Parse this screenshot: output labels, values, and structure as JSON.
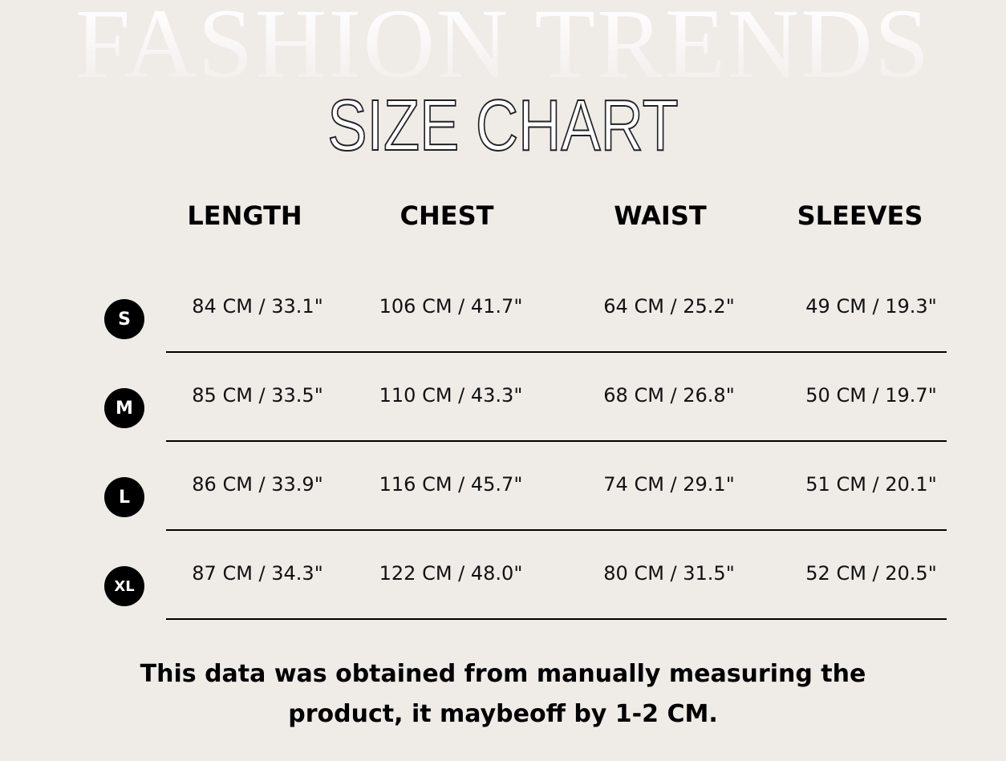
{
  "background_title": "FASHION TRENDS",
  "title": "SIZE CHART",
  "columns": [
    "LENGTH",
    "CHEST",
    "WAIST",
    "SLEEVES"
  ],
  "rows": [
    {
      "size": "S",
      "values": [
        "84  CM /  33.1\"",
        "106 CM /  41.7\"",
        "64  CM / 25.2\"",
        "49 CM /  19.3\""
      ]
    },
    {
      "size": "M",
      "values": [
        "85  CM / 33.5\"",
        "110 CM / 43.3\"",
        "68  CM / 26.8\"",
        "50 CM /  19.7\""
      ]
    },
    {
      "size": "L",
      "values": [
        "86  CM / 33.9\"",
        "116 CM / 45.7\"",
        "74  CM /  29.1\"",
        "51 CM /  20.1\""
      ]
    },
    {
      "size": "XL",
      "values": [
        "87  CM / 34.3\"",
        "122 CM / 48.0\"",
        "80  CM /  31.5\"",
        "52 CM / 20.5\""
      ]
    }
  ],
  "note": "This data was obtained from manually measuring the product, it maybeoff by 1-2 CM.",
  "colors": {
    "background": "#efebe7",
    "text": "#000000",
    "badge": "#000000"
  }
}
